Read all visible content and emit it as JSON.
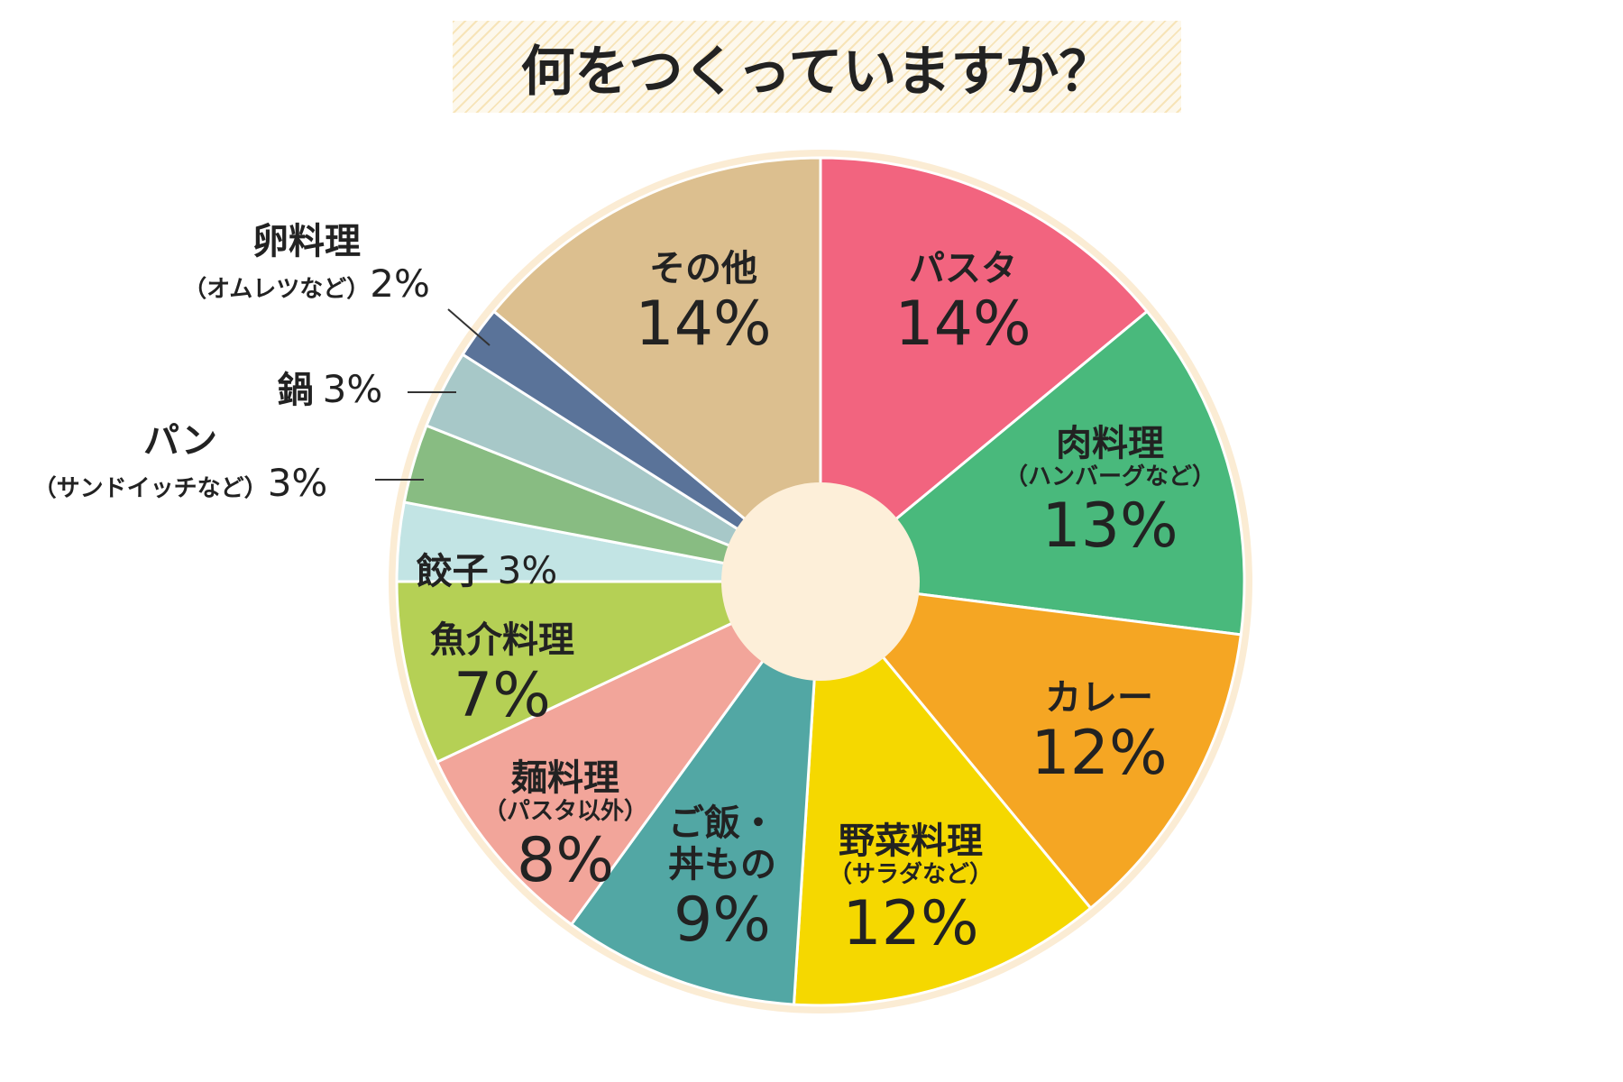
{
  "chart_data": {
    "type": "donut",
    "title": "何をつくっていますか？",
    "categories": [
      "パスタ",
      "肉料理",
      "カレー",
      "野菜料理",
      "ご飯・\n丼もの",
      "麺料理",
      "魚介料理",
      "餃子",
      "パン",
      "鍋",
      "卵料理",
      "その他"
    ],
    "subcategories": [
      null,
      "（ハンバーグなど）",
      null,
      "（サラダなど）",
      null,
      "（パスタ以外）",
      null,
      null,
      "（サンドイッチなど）",
      null,
      "（オムレツなど）",
      null
    ],
    "values": [
      14,
      13,
      12,
      12,
      9,
      8,
      7,
      3,
      3,
      3,
      2,
      14
    ],
    "value_labels": [
      "14%",
      "13%",
      "12%",
      "12%",
      "9%",
      "8%",
      "7%",
      "3%",
      "3%",
      "3%",
      "2%",
      "14%"
    ],
    "colors": [
      "#f2647f",
      "#49b97c",
      "#f5a623",
      "#f5d800",
      "#52a7a4",
      "#f2a59a",
      "#b5d055",
      "#c2e4e4",
      "#88bc82",
      "#a7c8c8",
      "#5a7399",
      "#dcbf8f"
    ]
  }
}
